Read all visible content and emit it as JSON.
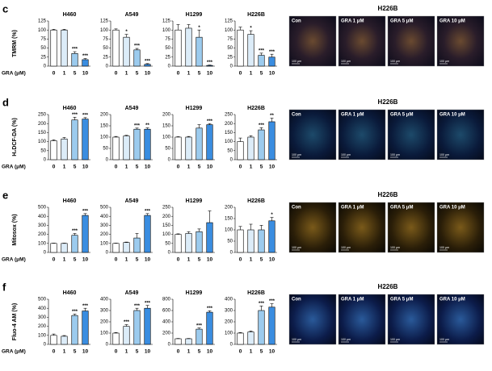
{
  "panels": [
    {
      "label": "c",
      "ylabel": "TMRM (%)",
      "xlabel": "GRA (μM)",
      "image_title": "H226B",
      "image_labels": [
        "Con",
        "GRA 1 μM",
        "GRA 5 μM",
        "GRA 10 μM"
      ],
      "scale_label": "100 μm"
    },
    {
      "label": "d",
      "ylabel": "H₂DCF-DA (%)",
      "xlabel": "GRA (μM)",
      "image_title": "H226B",
      "image_labels": [
        "Con",
        "GRA 1 μM",
        "GRA 5 μM",
        "GRA 10 μM"
      ],
      "scale_label": "100 μm"
    },
    {
      "label": "e",
      "ylabel": "Mitosox (%)",
      "xlabel": "GRA (μM)",
      "image_title": "H226B",
      "image_labels": [
        "Con",
        "GRA 1 μM",
        "GRA 5 μM",
        "GRA 10 μM"
      ],
      "scale_label": "100 μm"
    },
    {
      "label": "f",
      "ylabel": "Fluo-4 AM (%)",
      "xlabel": "GRA (μM)",
      "image_title": "H226B",
      "image_labels": [
        "Con",
        "GRA 1 μM",
        "GRA 5 μM",
        "GRA 10 μM"
      ],
      "scale_label": "100 μm"
    }
  ],
  "chart_data": [
    {
      "type": "bar",
      "title": "H460",
      "categories": [
        "0",
        "1",
        "5",
        "10"
      ],
      "values": [
        100,
        100,
        35,
        18
      ],
      "errors": [
        2,
        2,
        5,
        3
      ],
      "annotations": [
        null,
        null,
        "***",
        "***"
      ],
      "colors": [
        "#ffffff",
        "#dcecf8",
        "#9ccbee",
        "#3a8de0"
      ],
      "ylim": [
        0,
        125
      ],
      "yticks": [
        0,
        25,
        50,
        75,
        100,
        125
      ]
    },
    {
      "type": "bar",
      "title": "A549",
      "categories": [
        "0",
        "1",
        "5",
        "10"
      ],
      "values": [
        100,
        80,
        45,
        5
      ],
      "errors": [
        3,
        8,
        4,
        2
      ],
      "annotations": [
        null,
        "*",
        "***",
        "***"
      ],
      "colors": [
        "#ffffff",
        "#dcecf8",
        "#9ccbee",
        "#3a8de0"
      ],
      "ylim": [
        0,
        125
      ],
      "yticks": [
        0,
        25,
        50,
        75,
        100,
        125
      ]
    },
    {
      "type": "bar",
      "title": "H1299",
      "categories": [
        "0",
        "1",
        "5",
        "10"
      ],
      "values": [
        100,
        105,
        80,
        2
      ],
      "errors": [
        15,
        10,
        20,
        1
      ],
      "annotations": [
        null,
        null,
        "*",
        "***"
      ],
      "colors": [
        "#ffffff",
        "#dcecf8",
        "#9ccbee",
        "#3a8de0"
      ],
      "ylim": [
        0,
        125
      ],
      "yticks": [
        0,
        25,
        50,
        75,
        100,
        125
      ]
    },
    {
      "type": "bar",
      "title": "H226B",
      "categories": [
        "0",
        "1",
        "5",
        "10"
      ],
      "values": [
        100,
        88,
        30,
        25
      ],
      "errors": [
        8,
        10,
        6,
        8
      ],
      "annotations": [
        null,
        "*",
        "***",
        "***"
      ],
      "colors": [
        "#ffffff",
        "#dcecf8",
        "#9ccbee",
        "#3a8de0"
      ],
      "ylim": [
        0,
        125
      ],
      "yticks": [
        0,
        25,
        50,
        75,
        100,
        125
      ]
    },
    {
      "type": "bar",
      "title": "H460",
      "categories": [
        "0",
        "1",
        "5",
        "10"
      ],
      "values": [
        105,
        115,
        220,
        225
      ],
      "errors": [
        5,
        8,
        15,
        8
      ],
      "annotations": [
        null,
        null,
        "***",
        "***"
      ],
      "colors": [
        "#ffffff",
        "#dcecf8",
        "#9ccbee",
        "#3a8de0"
      ],
      "ylim": [
        0,
        250
      ],
      "yticks": [
        0,
        50,
        100,
        150,
        200,
        250
      ]
    },
    {
      "type": "bar",
      "title": "A549",
      "categories": [
        "0",
        "1",
        "5",
        "10"
      ],
      "values": [
        100,
        105,
        135,
        135
      ],
      "errors": [
        3,
        3,
        5,
        6
      ],
      "annotations": [
        null,
        null,
        "***",
        "**"
      ],
      "colors": [
        "#ffffff",
        "#dcecf8",
        "#9ccbee",
        "#3a8de0"
      ],
      "ylim": [
        0,
        200
      ],
      "yticks": [
        0,
        50,
        100,
        150,
        200
      ]
    },
    {
      "type": "bar",
      "title": "H1299",
      "categories": [
        "0",
        "1",
        "5",
        "10"
      ],
      "values": [
        100,
        100,
        140,
        155
      ],
      "errors": [
        2,
        3,
        15,
        5
      ],
      "annotations": [
        null,
        null,
        null,
        "***"
      ],
      "colors": [
        "#ffffff",
        "#dcecf8",
        "#9ccbee",
        "#3a8de0"
      ],
      "ylim": [
        0,
        200
      ],
      "yticks": [
        0,
        50,
        100,
        150,
        200
      ]
    },
    {
      "type": "bar",
      "title": "H226B",
      "categories": [
        "0",
        "1",
        "5",
        "10"
      ],
      "values": [
        100,
        125,
        165,
        210
      ],
      "errors": [
        20,
        8,
        12,
        20
      ],
      "annotations": [
        null,
        null,
        "***",
        "**"
      ],
      "colors": [
        "#ffffff",
        "#dcecf8",
        "#9ccbee",
        "#3a8de0"
      ],
      "ylim": [
        0,
        250
      ],
      "yticks": [
        0,
        50,
        100,
        150,
        200,
        250
      ]
    },
    {
      "type": "bar",
      "title": "H460",
      "categories": [
        "0",
        "1",
        "5",
        "10"
      ],
      "values": [
        100,
        100,
        190,
        410
      ],
      "errors": [
        3,
        3,
        20,
        20
      ],
      "annotations": [
        null,
        null,
        "***",
        "***"
      ],
      "colors": [
        "#ffffff",
        "#dcecf8",
        "#9ccbee",
        "#3a8de0"
      ],
      "ylim": [
        0,
        500
      ],
      "yticks": [
        0,
        100,
        200,
        300,
        400,
        500
      ]
    },
    {
      "type": "bar",
      "title": "A549",
      "categories": [
        "0",
        "1",
        "5",
        "10"
      ],
      "values": [
        100,
        110,
        160,
        410
      ],
      "errors": [
        3,
        5,
        50,
        20
      ],
      "annotations": [
        null,
        null,
        null,
        "***"
      ],
      "colors": [
        "#ffffff",
        "#dcecf8",
        "#9ccbee",
        "#3a8de0"
      ],
      "ylim": [
        0,
        500
      ],
      "yticks": [
        0,
        100,
        200,
        300,
        400,
        500
      ]
    },
    {
      "type": "bar",
      "title": "H1299",
      "categories": [
        "0",
        "1",
        "5",
        "10"
      ],
      "values": [
        100,
        105,
        115,
        165
      ],
      "errors": [
        3,
        10,
        15,
        65
      ],
      "annotations": [
        null,
        null,
        null,
        null
      ],
      "colors": [
        "#ffffff",
        "#dcecf8",
        "#9ccbee",
        "#3a8de0"
      ],
      "ylim": [
        0,
        250
      ],
      "yticks": [
        0,
        50,
        100,
        150,
        200,
        250
      ]
    },
    {
      "type": "bar",
      "title": "H226B",
      "categories": [
        "0",
        "1",
        "5",
        "10"
      ],
      "values": [
        100,
        100,
        100,
        140
      ],
      "errors": [
        15,
        25,
        20,
        15
      ],
      "annotations": [
        null,
        null,
        null,
        "*"
      ],
      "colors": [
        "#ffffff",
        "#dcecf8",
        "#9ccbee",
        "#3a8de0"
      ],
      "ylim": [
        0,
        200
      ],
      "yticks": [
        0,
        50,
        100,
        150,
        200
      ]
    },
    {
      "type": "bar",
      "title": "H460",
      "categories": [
        "0",
        "1",
        "5",
        "10"
      ],
      "values": [
        100,
        90,
        320,
        370
      ],
      "errors": [
        15,
        8,
        15,
        30
      ],
      "annotations": [
        null,
        null,
        "***",
        "***"
      ],
      "colors": [
        "#ffffff",
        "#dcecf8",
        "#9ccbee",
        "#3a8de0"
      ],
      "ylim": [
        0,
        500
      ],
      "yticks": [
        0,
        100,
        200,
        300,
        400,
        500
      ]
    },
    {
      "type": "bar",
      "title": "A549",
      "categories": [
        "0",
        "1",
        "5",
        "10"
      ],
      "values": [
        100,
        160,
        300,
        320
      ],
      "errors": [
        5,
        15,
        20,
        25
      ],
      "annotations": [
        null,
        "***",
        "***",
        "***"
      ],
      "colors": [
        "#ffffff",
        "#dcecf8",
        "#9ccbee",
        "#3a8de0"
      ],
      "ylim": [
        0,
        400
      ],
      "yticks": [
        0,
        100,
        200,
        300,
        400
      ]
    },
    {
      "type": "bar",
      "title": "H1299",
      "categories": [
        "0",
        "1",
        "5",
        "10"
      ],
      "values": [
        100,
        100,
        270,
        570
      ],
      "errors": [
        5,
        5,
        20,
        25
      ],
      "annotations": [
        null,
        null,
        "***",
        "***"
      ],
      "colors": [
        "#ffffff",
        "#dcecf8",
        "#9ccbee",
        "#3a8de0"
      ],
      "ylim": [
        0,
        800
      ],
      "yticks": [
        0,
        200,
        400,
        600,
        800
      ]
    },
    {
      "type": "bar",
      "title": "H226B",
      "categories": [
        "0",
        "1",
        "5",
        "10"
      ],
      "values": [
        100,
        110,
        300,
        330
      ],
      "errors": [
        5,
        8,
        40,
        30
      ],
      "annotations": [
        null,
        null,
        "***",
        "***"
      ],
      "colors": [
        "#ffffff",
        "#dcecf8",
        "#9ccbee",
        "#3a8de0"
      ],
      "ylim": [
        0,
        400
      ],
      "yticks": [
        0,
        100,
        200,
        300,
        400
      ]
    }
  ]
}
